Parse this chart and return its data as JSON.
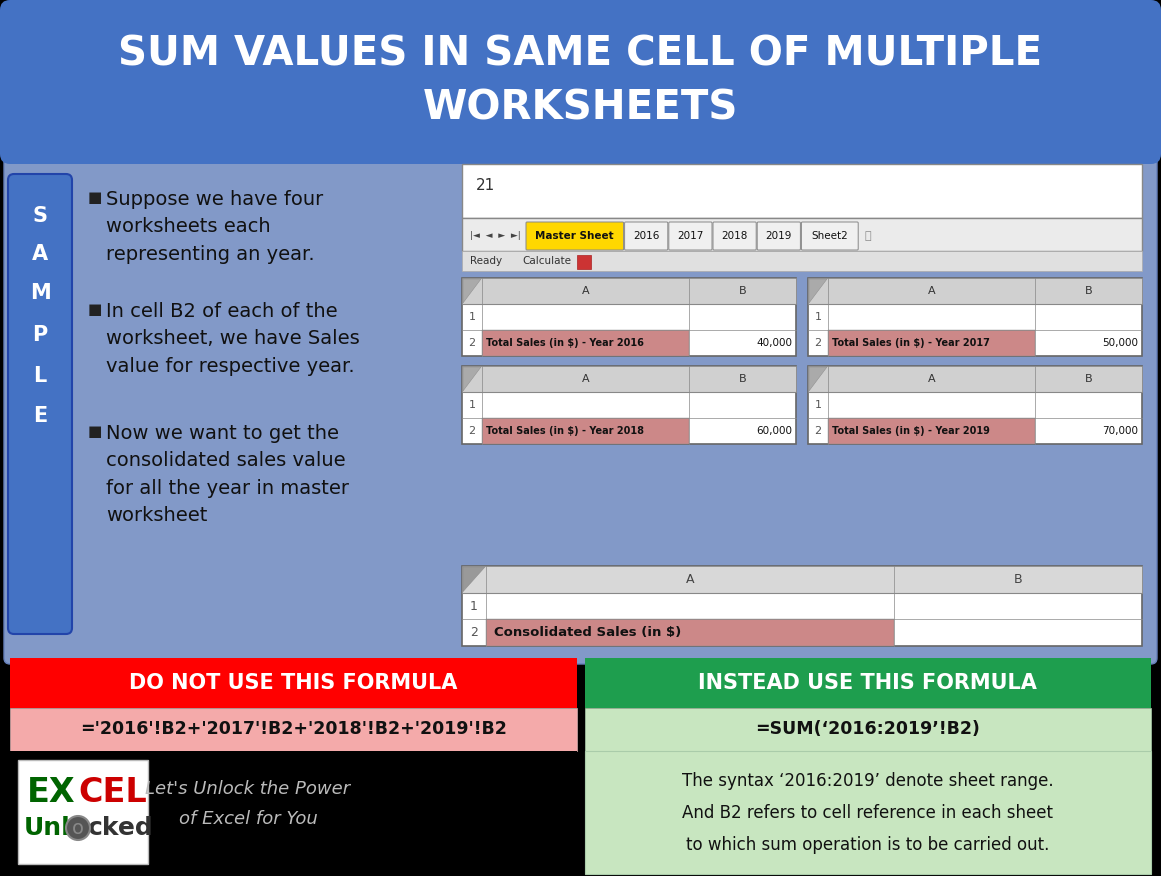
{
  "title_line1": "SUM VALUES IN SAME CELL OF MULTIPLE",
  "title_line2": "WORKSHEETS",
  "title_bg": "#4472C4",
  "title_text_color": "#FFFFFF",
  "main_bg": "#8299C8",
  "sample_bg": "#4472C4",
  "sample_letters": [
    "S",
    "A",
    "M",
    "P",
    "L",
    "E"
  ],
  "bullet1": "Suppose we have four\nworksheets each\nrepresenting an year.",
  "bullet2": "In cell B2 of each of the\nworksheet, we have Sales\nvalue for respective year.",
  "bullet3": "Now we want to get the\nconsolidated sales value\nfor all the year in master\nworksheet",
  "do_not_label": "DO NOT USE THIS FORMULA",
  "instead_label": "INSTEAD USE THIS FORMULA",
  "do_not_bg": "#FF0000",
  "instead_bg": "#1E9E4E",
  "do_not_formula": "='2016'!B2+'2017'!B2+'2018'!B2+'2019'!B2",
  "instead_formula": "=SUM(‘2016:2019’!B2)",
  "do_not_formula_bg": "#F4AAAA",
  "instead_formula_bg": "#C8E6C0",
  "footer_note": "The syntax ‘2016:2019’ denote sheet range.\nAnd B2 refers to cell reference in each sheet\nto which sum operation is to be carried out.",
  "footer_note_bg": "#C8E6C0",
  "sheet_tabs": [
    "Master Sheet",
    "2016",
    "2017",
    "2018",
    "2019",
    "Sheet2"
  ],
  "year2016_label": "Total Sales (in $) - Year 2016",
  "year2016_val": "40,000",
  "year2017_label": "Total Sales (in $) - Year 2017",
  "year2017_val": "50,000",
  "year2018_label": "Total Sales (in $) - Year 2018",
  "year2018_val": "60,000",
  "year2019_label": "Total Sales (in $) - Year 2019",
  "year2019_val": "70,000",
  "master_label": "Consolidated Sales (in $)",
  "cell_pink": "#CC8888",
  "cell_header_bg": "#C8C8C8",
  "cell_border": "#888888"
}
